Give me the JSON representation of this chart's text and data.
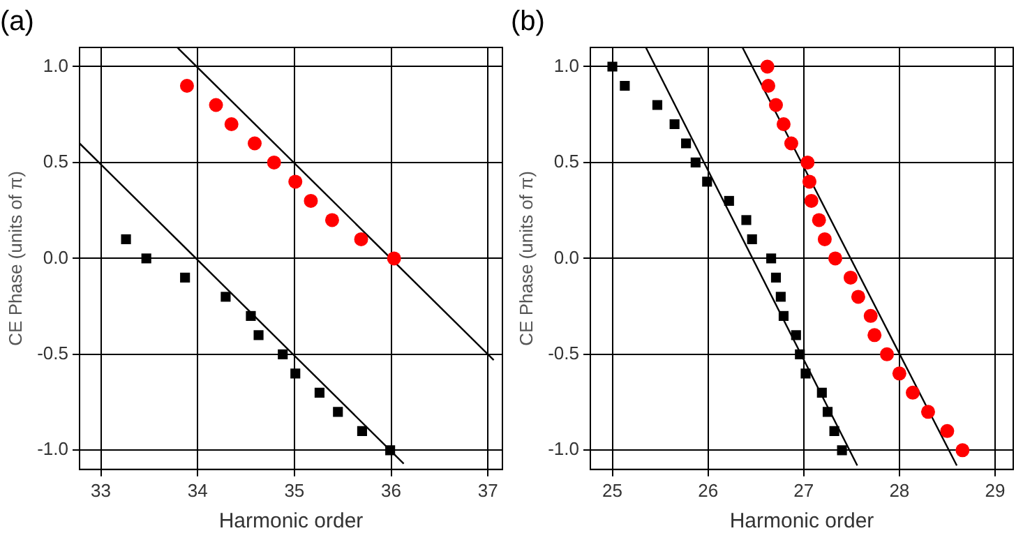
{
  "chart_data": [
    {
      "type": "scatter",
      "title": "(a)",
      "xlabel": "Harmonic order",
      "ylabel": "CE Phase (units of π)",
      "xlim": [
        32.78,
        37.15
      ],
      "ylim": [
        -1.1,
        1.1
      ],
      "xticks": [
        33,
        34,
        35,
        36,
        37
      ],
      "yticks": [
        {
          "value": -1,
          "label": "-1.0"
        },
        {
          "value": -0.5,
          "label": "-0.5"
        },
        {
          "value": 0,
          "label": "0.0"
        },
        {
          "value": 0.5,
          "label": "0.5"
        },
        {
          "value": 1,
          "label": "1.0"
        }
      ],
      "grid": true,
      "legend": false,
      "series": [
        {
          "type": "scatter",
          "marker": "circle",
          "color": "#ff0000",
          "x": [
            33.89,
            34.19,
            34.35,
            34.59,
            34.79,
            35.01,
            35.17,
            35.39,
            35.69,
            36.03
          ],
          "values": [
            0.9,
            0.8,
            0.7,
            0.6,
            0.5,
            0.4,
            0.3,
            0.2,
            0.1,
            0.0
          ]
        },
        {
          "type": "scatter",
          "marker": "square",
          "color": "#000000",
          "x": [
            33.26,
            33.47,
            33.87,
            34.29,
            34.55,
            34.63,
            34.88,
            35.01,
            35.26,
            35.45,
            35.7,
            35.99
          ],
          "values": [
            0.1,
            0.0,
            -0.1,
            -0.2,
            -0.3,
            -0.4,
            -0.5,
            -0.6,
            -0.7,
            -0.8,
            -0.9,
            -1.0
          ]
        },
        {
          "type": "line",
          "marker": "none",
          "color": "#000000",
          "x": [
            33.79,
            37.06
          ],
          "values": [
            1.1,
            -0.53
          ]
        },
        {
          "type": "line",
          "marker": "none",
          "color": "#000000",
          "x": [
            32.78,
            36.13
          ],
          "values": [
            0.6,
            -1.07
          ]
        }
      ]
    },
    {
      "type": "scatter",
      "title": "(b)",
      "xlabel": "Harmonic order",
      "ylabel": "CE Phase (units of π)",
      "xlim": [
        24.77,
        29.19
      ],
      "ylim": [
        -1.1,
        1.1
      ],
      "xticks": [
        25,
        26,
        27,
        28,
        29
      ],
      "yticks": [
        {
          "value": -1,
          "label": "-1.0"
        },
        {
          "value": -0.5,
          "label": "-0.5"
        },
        {
          "value": 0,
          "label": "0.0"
        },
        {
          "value": 0.5,
          "label": "0.5"
        },
        {
          "value": 1,
          "label": "1.0"
        }
      ],
      "grid": true,
      "legend": false,
      "series": [
        {
          "type": "scatter",
          "marker": "square",
          "color": "#000000",
          "x": [
            25.0,
            25.13,
            25.47,
            25.65,
            25.77,
            25.87,
            25.99,
            26.22,
            26.4,
            26.46,
            26.66,
            26.71,
            26.76,
            26.79,
            26.92,
            26.96,
            27.02,
            27.19,
            27.25,
            27.32,
            27.4
          ],
          "values": [
            1.0,
            0.9,
            0.8,
            0.7,
            0.6,
            0.5,
            0.4,
            0.3,
            0.2,
            0.1,
            0.0,
            -0.1,
            -0.2,
            -0.3,
            -0.4,
            -0.5,
            -0.6,
            -0.7,
            -0.8,
            -0.9,
            -1.0
          ]
        },
        {
          "type": "scatter",
          "marker": "circle",
          "color": "#ff0000",
          "x": [
            26.62,
            26.63,
            26.71,
            26.79,
            26.87,
            27.04,
            27.06,
            27.08,
            27.16,
            27.22,
            27.33,
            27.49,
            27.57,
            27.7,
            27.74,
            27.87,
            28.0,
            28.14,
            28.3,
            28.5,
            28.66
          ],
          "values": [
            1.0,
            0.9,
            0.8,
            0.7,
            0.6,
            0.5,
            0.4,
            0.3,
            0.2,
            0.1,
            0.0,
            -0.1,
            -0.2,
            -0.3,
            -0.4,
            -0.5,
            -0.6,
            -0.7,
            -0.8,
            -0.9,
            -1.0
          ]
        },
        {
          "type": "line",
          "marker": "none",
          "color": "#000000",
          "x": [
            25.35,
            27.56
          ],
          "values": [
            1.1,
            -1.08
          ]
        },
        {
          "type": "line",
          "marker": "none",
          "color": "#000000",
          "x": [
            26.36,
            28.6
          ],
          "values": [
            1.1,
            -1.08
          ]
        }
      ]
    }
  ]
}
